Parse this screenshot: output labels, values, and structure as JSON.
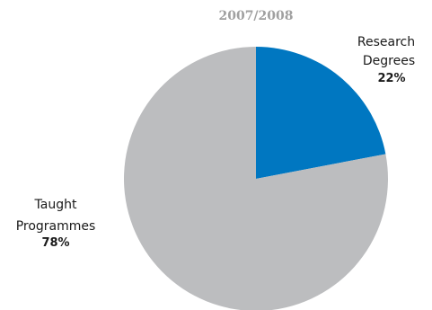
{
  "chart_data": {
    "type": "pie",
    "title": "2007/2008",
    "slices": [
      {
        "label_lines": [
          "Research",
          "Degrees"
        ],
        "value": 22,
        "value_label": "22%",
        "color": "#0077c1"
      },
      {
        "label_lines": [
          "Taught",
          "Programmes"
        ],
        "value": 78,
        "value_label": "78%",
        "color": "#bcbdbf"
      }
    ]
  }
}
